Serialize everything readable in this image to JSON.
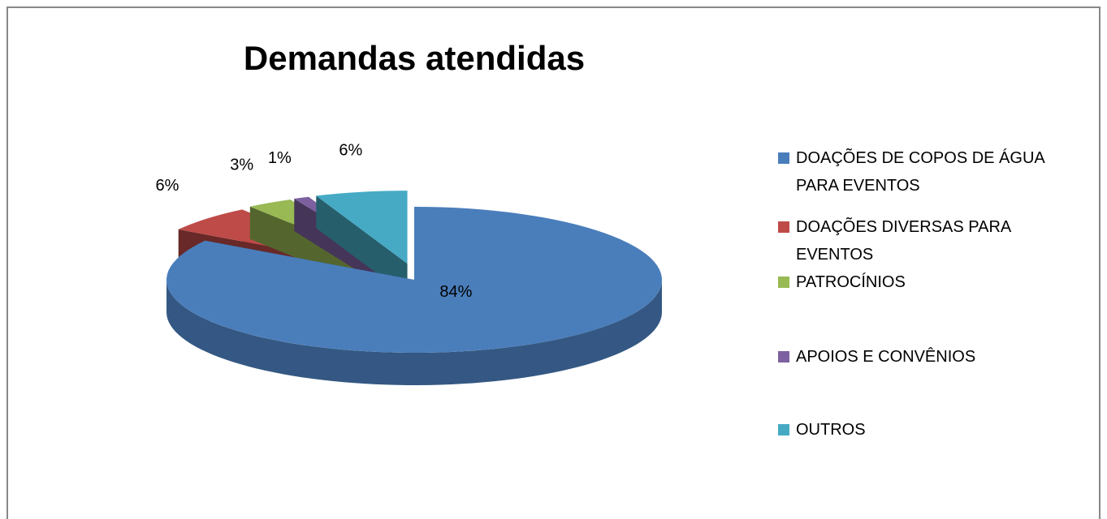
{
  "chart_data": {
    "type": "pie",
    "title": "Demandas atendidas",
    "categories": [
      "DOAÇÕES DE COPOS DE ÁGUA PARA EVENTOS",
      "DOAÇÕES DIVERSAS  PARA EVENTOS",
      "PATROCÍNIOS",
      "APOIOS E CONVÊNIOS",
      "OUTROS"
    ],
    "values": [
      84,
      6,
      3,
      1,
      6
    ],
    "value_labels": [
      "84%",
      "6%",
      "3%",
      "1%",
      "6%"
    ],
    "colors": [
      "#4a7ebb",
      "#be4b48",
      "#98b954",
      "#7d60a0",
      "#46aac5"
    ],
    "legend": "right"
  }
}
